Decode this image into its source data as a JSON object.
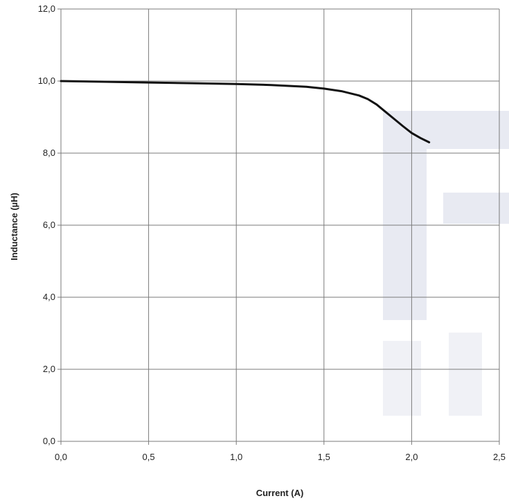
{
  "chart_data": {
    "type": "line",
    "title": "",
    "xlabel": "Current (A)",
    "ylabel": "Inductance (µH)",
    "xlim": [
      0,
      2.5
    ],
    "ylim": [
      0,
      12
    ],
    "x_ticks": [
      "0,0",
      "0,5",
      "1,0",
      "1,5",
      "2,0",
      "2,5"
    ],
    "y_ticks": [
      "0,0",
      "2,0",
      "4,0",
      "6,0",
      "8,0",
      "10,0",
      "12,0"
    ],
    "grid": true,
    "series": [
      {
        "x": [
          0.0,
          0.25,
          0.5,
          0.75,
          1.0,
          1.2,
          1.4,
          1.5,
          1.6,
          1.7,
          1.75,
          1.8,
          1.85,
          1.9,
          1.95,
          2.0,
          2.05,
          2.1
        ],
        "y": [
          10.0,
          9.98,
          9.96,
          9.94,
          9.92,
          9.89,
          9.84,
          9.79,
          9.72,
          9.6,
          9.5,
          9.35,
          9.15,
          8.95,
          8.75,
          8.56,
          8.42,
          8.3
        ],
        "color": "#111111"
      }
    ]
  },
  "colors": {
    "grid": "#7a7a7a",
    "line": "#111111",
    "watermark": "#e7e9f1"
  }
}
